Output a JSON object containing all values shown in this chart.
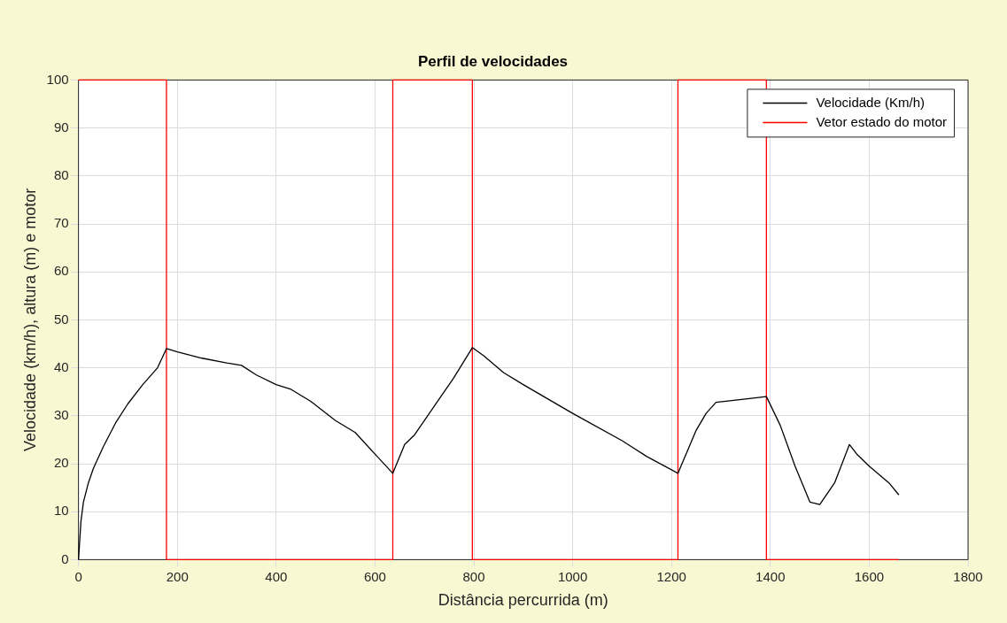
{
  "chart_data": {
    "type": "line",
    "title": "Perfil de velocidades",
    "xlabel": "Distância percurrida (m)",
    "ylabel": "Velocidade (km/h), altura (m) e motor",
    "xlim": [
      0,
      1800
    ],
    "xticks": [
      0,
      200,
      400,
      600,
      800,
      1000,
      1200,
      1400,
      1600,
      1800
    ],
    "ylim": [
      0,
      100
    ],
    "yticks": [
      0,
      10,
      20,
      30,
      40,
      50,
      60,
      70,
      80,
      90,
      100
    ],
    "grid": true,
    "legend": "top right",
    "marker": "none",
    "line_style": "solid",
    "series": [
      {
        "name": "Velocidade (Km/h)",
        "color": "#000000",
        "x": [
          0,
          5,
          10,
          20,
          30,
          50,
          75,
          100,
          130,
          160,
          178,
          200,
          250,
          300,
          330,
          360,
          400,
          430,
          470,
          520,
          560,
          600,
          636,
          660,
          680,
          720,
          760,
          797,
          820,
          860,
          900,
          1000,
          1100,
          1150,
          1213,
          1250,
          1270,
          1290,
          1350,
          1392,
          1420,
          1450,
          1480,
          1500,
          1530,
          1560,
          1575,
          1600,
          1640,
          1660
        ],
        "values": [
          0,
          8,
          12,
          16,
          19,
          23.5,
          28.5,
          32.5,
          36.5,
          40,
          44,
          43.3,
          42,
          41,
          40.5,
          38.5,
          36.5,
          35.5,
          33,
          29,
          26.5,
          22,
          18,
          24,
          26,
          32,
          38,
          44.2,
          42.5,
          39,
          36.5,
          30.5,
          24.8,
          21.5,
          18,
          27,
          30.5,
          32.8,
          33.5,
          34,
          28,
          19.5,
          12,
          11.5,
          16,
          24,
          22,
          19.5,
          16,
          13.5
        ]
      },
      {
        "name": "Vetor estado do motor",
        "color": "#ff0000",
        "x": [
          0,
          178,
          178,
          636,
          636,
          797,
          797,
          1213,
          1213,
          1392,
          1392,
          1660
        ],
        "values": [
          100,
          100,
          0,
          0,
          100,
          100,
          0,
          0,
          100,
          100,
          0,
          0
        ]
      }
    ]
  }
}
